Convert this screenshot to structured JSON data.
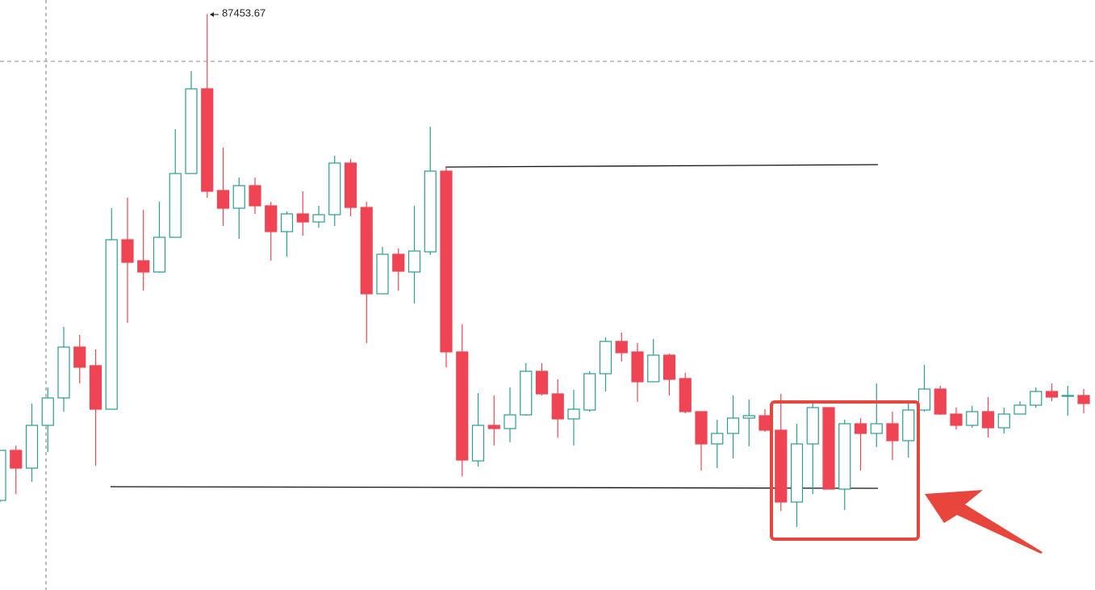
{
  "chart_data": {
    "type": "candlestick",
    "open": [
      75400,
      76640,
      76200,
      77260,
      77940,
      79200,
      78740,
      77660,
      81860,
      81340,
      81060,
      81920,
      83500,
      85600,
      83080,
      82640,
      83200,
      82700,
      82060,
      82500,
      82300,
      82480,
      83760,
      82660,
      80520,
      81500,
      81060,
      81560,
      83560,
      79080,
      76380,
      77260,
      77180,
      77520,
      78600,
      78040,
      77420,
      77640,
      78540,
      79340,
      79080,
      78340,
      79000,
      78420,
      77600,
      76800,
      77060,
      77440,
      77500,
      77140,
      75360,
      76800,
      77700,
      75680,
      77300,
      77060,
      77300,
      76880,
      77640,
      78160,
      77540,
      77260,
      77600,
      77200,
      77540,
      77760,
      78100,
      77980,
      78000
    ],
    "high": [
      76640,
      76760,
      77800,
      78200,
      79700,
      79500,
      79140,
      82640,
      82900,
      82600,
      82800,
      84600,
      86040,
      87453.67,
      84140,
      83400,
      83400,
      82800,
      82560,
      83060,
      82700,
      83940,
      83860,
      82800,
      81680,
      81640,
      82700,
      84660,
      83680,
      79760,
      78060,
      78000,
      78200,
      78800,
      78800,
      78400,
      78140,
      78600,
      79440,
      79560,
      79300,
      79400,
      79040,
      78560,
      77600,
      77400,
      78000,
      77900,
      77660,
      78040,
      77300,
      77800,
      77700,
      77400,
      77440,
      78300,
      77600,
      77800,
      78760,
      78240,
      77700,
      77740,
      77960,
      77700,
      77860,
      78200,
      78300,
      78240,
      78160
    ],
    "low": [
      75360,
      75560,
      75860,
      76600,
      77600,
      78300,
      76260,
      77660,
      79800,
      80600,
      81040,
      81920,
      83500,
      82900,
      82200,
      81880,
      82500,
      81340,
      81440,
      81960,
      82160,
      82200,
      82440,
      79300,
      80520,
      80600,
      80280,
      81480,
      78700,
      76000,
      76240,
      76760,
      76840,
      77500,
      78000,
      76960,
      76760,
      77600,
      78100,
      78840,
      77840,
      78360,
      78000,
      77560,
      76140,
      76200,
      76440,
      76740,
      77100,
      75140,
      74740,
      75560,
      75680,
      75160,
      76140,
      76720,
      76400,
      76460,
      77600,
      77520,
      77160,
      77200,
      76960,
      77060,
      77540,
      77700,
      77860,
      77500,
      77560
    ],
    "close": [
      76640,
      76200,
      77260,
      77940,
      79200,
      78700,
      77660,
      81860,
      81300,
      81060,
      81920,
      83500,
      85600,
      83060,
      82640,
      83200,
      82700,
      82060,
      82500,
      82300,
      82480,
      83760,
      82660,
      80520,
      81500,
      81080,
      81580,
      83560,
      79080,
      76400,
      77260,
      77180,
      77520,
      78600,
      78040,
      77420,
      77660,
      78540,
      79340,
      79060,
      78340,
      79000,
      78400,
      77600,
      76800,
      77060,
      77440,
      77500,
      77140,
      75360,
      76800,
      77700,
      75680,
      77300,
      77060,
      77300,
      76880,
      77640,
      78160,
      77540,
      77260,
      77600,
      77200,
      77540,
      77760,
      78100,
      77960,
      78000,
      77800
    ],
    "ylim": [
      73180,
      87800
    ],
    "up_color": "#2a9d8f",
    "down_color": "#ef4454"
  }
}
